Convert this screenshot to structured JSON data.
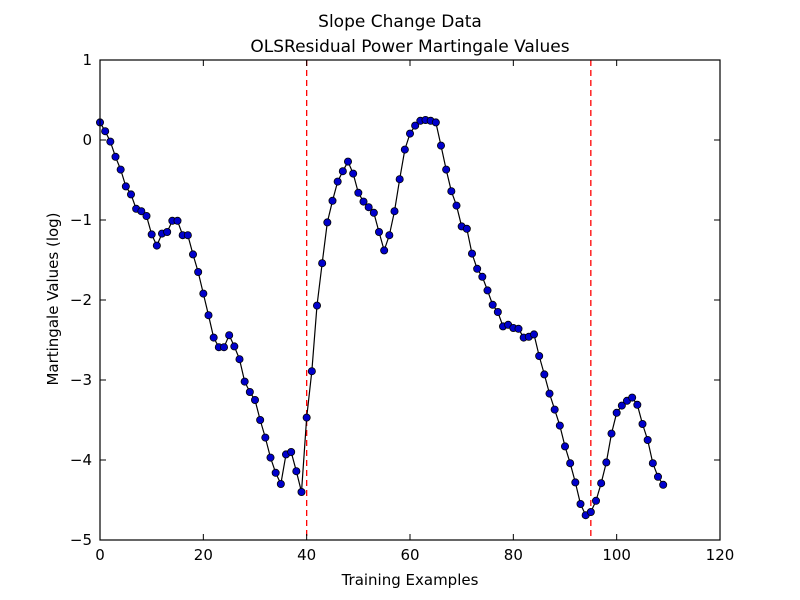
{
  "chart_data": {
    "type": "line",
    "title": "Slope Change Data",
    "subtitle": "OLSResidual Power Martingale Values",
    "xlabel": "Training Examples",
    "ylabel": "Martingale Values (log)",
    "xlim": [
      0,
      120
    ],
    "ylim": [
      -5,
      1
    ],
    "xticks": [
      0,
      20,
      40,
      60,
      80,
      100,
      120
    ],
    "yticks": [
      -5,
      -4,
      -3,
      -2,
      -1,
      0,
      1
    ],
    "xtick_labels": [
      "0",
      "20",
      "40",
      "60",
      "80",
      "100",
      "120"
    ],
    "ytick_labels": [
      "−5",
      "−4",
      "−3",
      "−2",
      "−1",
      "0",
      "1"
    ],
    "grid": false,
    "change_points": [
      40,
      95
    ],
    "colors": {
      "line": "#000000",
      "marker": "#0000cc",
      "change_point": "#ff0000"
    },
    "series": [
      {
        "x": [
          0,
          1,
          2,
          3,
          4,
          5,
          6,
          7,
          8,
          9,
          10,
          11,
          12,
          13,
          14,
          15,
          16,
          17,
          18,
          19,
          20,
          21,
          22,
          23,
          24,
          25,
          26,
          27,
          28,
          29,
          30,
          31,
          32,
          33,
          34,
          35,
          36,
          37,
          38,
          39,
          40,
          41,
          42,
          43,
          44,
          45,
          46,
          47,
          48,
          49,
          50,
          51,
          52,
          53,
          54,
          55,
          56,
          57,
          58,
          59,
          60,
          61,
          62,
          63,
          64,
          65,
          66,
          67,
          68,
          69,
          70,
          71,
          72,
          73,
          74,
          75,
          76,
          77,
          78,
          79,
          80,
          81,
          82,
          83,
          84,
          85,
          86,
          87,
          88,
          89,
          90,
          91,
          92,
          93,
          94,
          95,
          96,
          97,
          98,
          99,
          100,
          101,
          102,
          103,
          104,
          105,
          106,
          107,
          108,
          109
        ],
        "y": [
          0.22,
          0.11,
          -0.02,
          -0.21,
          -0.37,
          -0.58,
          -0.68,
          -0.86,
          -0.89,
          -0.95,
          -1.18,
          -1.32,
          -1.17,
          -1.15,
          -1.01,
          -1.01,
          -1.19,
          -1.19,
          -1.43,
          -1.65,
          -1.92,
          -2.19,
          -2.47,
          -2.59,
          -2.59,
          -2.44,
          -2.58,
          -2.74,
          -3.02,
          -3.15,
          -3.25,
          -3.5,
          -3.72,
          -3.97,
          -4.16,
          -4.3,
          -3.93,
          -3.9,
          -4.14,
          -4.4,
          -3.47,
          -2.89,
          -2.07,
          -1.54,
          -1.03,
          -0.76,
          -0.52,
          -0.39,
          -0.27,
          -0.42,
          -0.66,
          -0.77,
          -0.84,
          -0.91,
          -1.15,
          -1.38,
          -1.19,
          -0.89,
          -0.49,
          -0.12,
          0.08,
          0.18,
          0.24,
          0.25,
          0.24,
          0.22,
          -0.07,
          -0.37,
          -0.64,
          -0.82,
          -1.08,
          -1.11,
          -1.42,
          -1.61,
          -1.71,
          -1.88,
          -2.06,
          -2.15,
          -2.33,
          -2.31,
          -2.35,
          -2.36,
          -2.47,
          -2.46,
          -2.43,
          -2.7,
          -2.93,
          -3.17,
          -3.37,
          -3.57,
          -3.83,
          -4.04,
          -4.28,
          -4.55,
          -4.69,
          -4.65,
          -4.51,
          -4.29,
          -4.03,
          -3.67,
          -3.41,
          -3.32,
          -3.26,
          -3.22,
          -3.31,
          -3.55,
          -3.75,
          -4.04,
          -4.21,
          -4.31
        ]
      }
    ]
  }
}
